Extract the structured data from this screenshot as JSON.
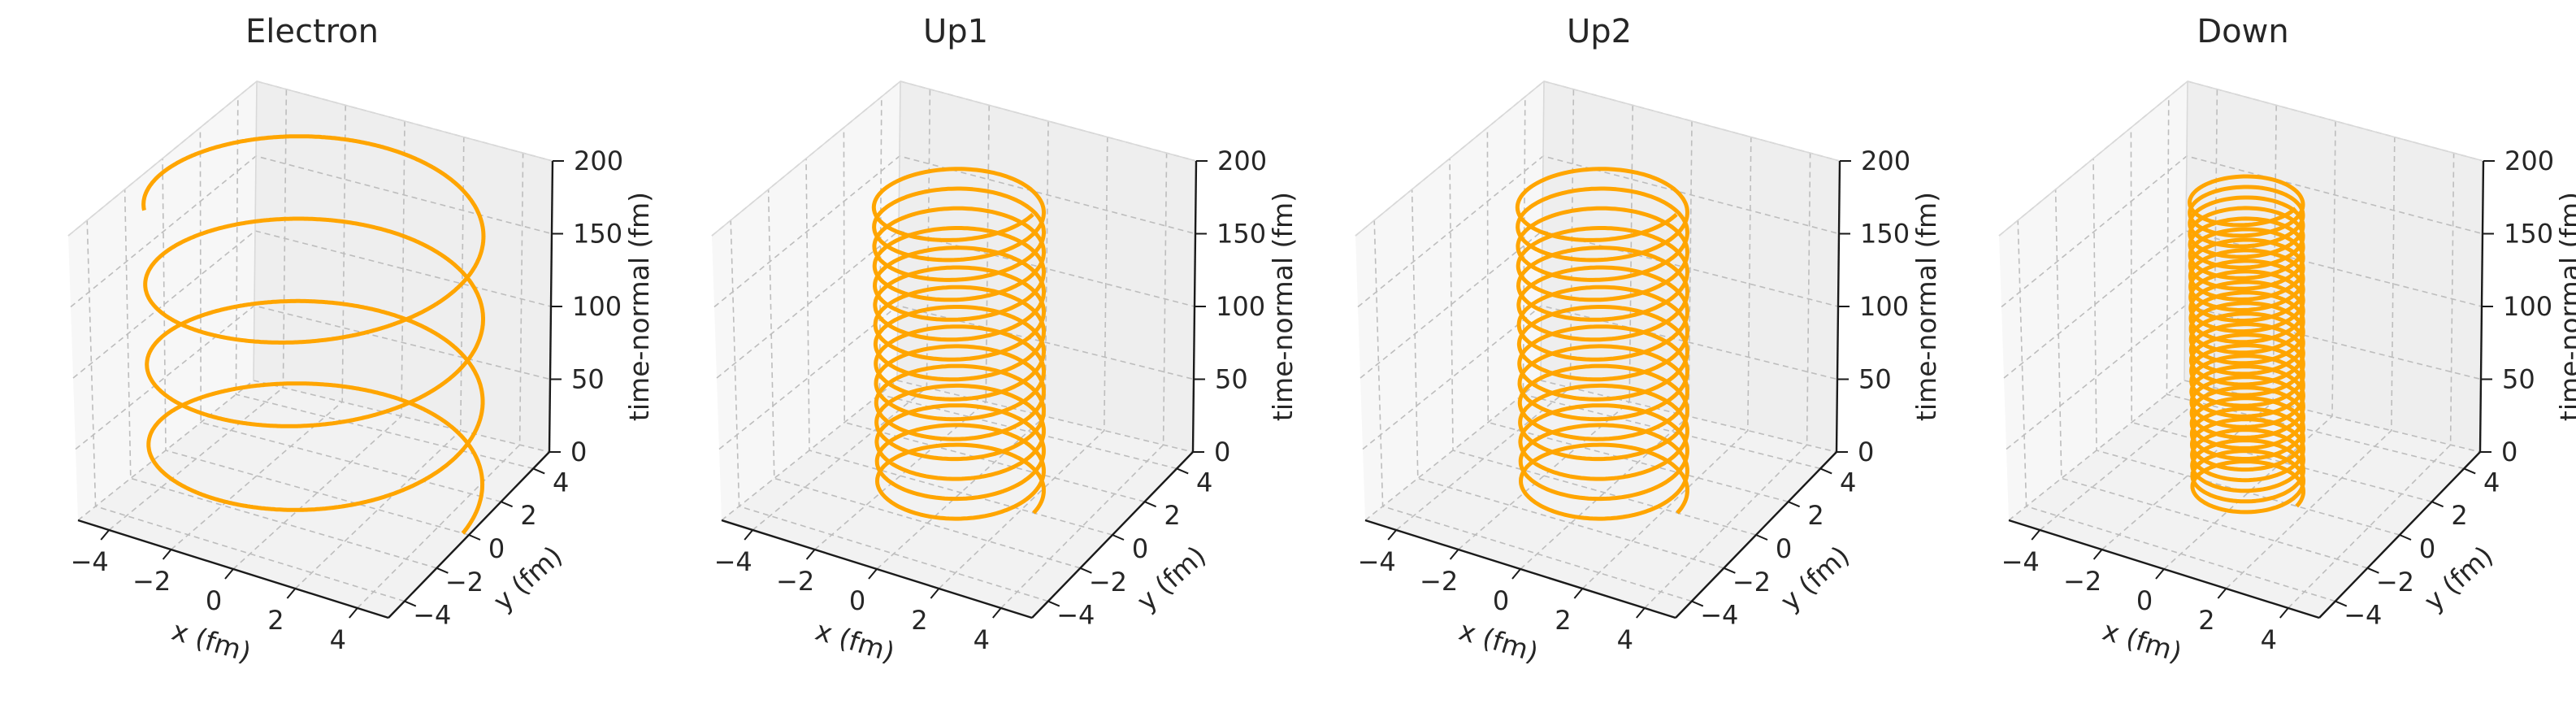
{
  "chart_data": [
    {
      "type": "line3d",
      "title": "Electron",
      "xlabel": "x (fm)",
      "ylabel": "y (fm)",
      "zlabel": "time-normal (fm)",
      "xlim": [
        -5,
        5
      ],
      "ylim": [
        -5,
        5
      ],
      "zlim": [
        0,
        200
      ],
      "xticks": [
        "-4",
        "-2",
        "0",
        "2",
        "4"
      ],
      "yticks": [
        "-4",
        "-2",
        "0",
        "2",
        "4"
      ],
      "zticks": [
        "0",
        "50",
        "100",
        "150",
        "200"
      ],
      "grid": true,
      "series": [
        {
          "radius": 4.8,
          "turns": 3.6,
          "z_start": 0,
          "z_end": 200,
          "color": "#FFA500"
        }
      ]
    },
    {
      "type": "line3d",
      "title": "Up1",
      "xlabel": "x (fm)",
      "ylabel": "y (fm)",
      "zlabel": "time-normal (fm)",
      "xlim": [
        -5,
        5
      ],
      "ylim": [
        -5,
        5
      ],
      "zlim": [
        0,
        200
      ],
      "xticks": [
        "-4",
        "-2",
        "0",
        "2",
        "4"
      ],
      "yticks": [
        "-4",
        "-2",
        "0",
        "2",
        "4"
      ],
      "zticks": [
        "0",
        "50",
        "100",
        "150",
        "200"
      ],
      "grid": true,
      "series": [
        {
          "radius": 2.4,
          "turns": 15,
          "z_start": 0,
          "z_end": 200,
          "color": "#FFA500"
        }
      ]
    },
    {
      "type": "line3d",
      "title": "Up2",
      "xlabel": "x (fm)",
      "ylabel": "y (fm)",
      "zlabel": "time-normal (fm)",
      "xlim": [
        -5,
        5
      ],
      "ylim": [
        -5,
        5
      ],
      "zlim": [
        0,
        200
      ],
      "xticks": [
        "-4",
        "-2",
        "0",
        "2",
        "4"
      ],
      "yticks": [
        "-4",
        "-2",
        "0",
        "2",
        "4"
      ],
      "zticks": [
        "0",
        "50",
        "100",
        "150",
        "200"
      ],
      "grid": true,
      "series": [
        {
          "radius": 2.4,
          "turns": 15,
          "z_start": 0,
          "z_end": 200,
          "color": "#FFA500"
        }
      ]
    },
    {
      "type": "line3d",
      "title": "Down",
      "xlabel": "x (fm)",
      "ylabel": "y (fm)",
      "zlabel": "time-normal (fm)",
      "xlim": [
        -5,
        5
      ],
      "ylim": [
        -5,
        5
      ],
      "zlim": [
        0,
        200
      ],
      "xticks": [
        "-4",
        "-2",
        "0",
        "2",
        "4"
      ],
      "yticks": [
        "-4",
        "-2",
        "0",
        "2",
        "4"
      ],
      "zticks": [
        "0",
        "50",
        "100",
        "150",
        "200"
      ],
      "grid": true,
      "series": [
        {
          "radius": 1.6,
          "turns": 28,
          "z_start": 0,
          "z_end": 200,
          "color": "#FFA500"
        }
      ]
    }
  ]
}
